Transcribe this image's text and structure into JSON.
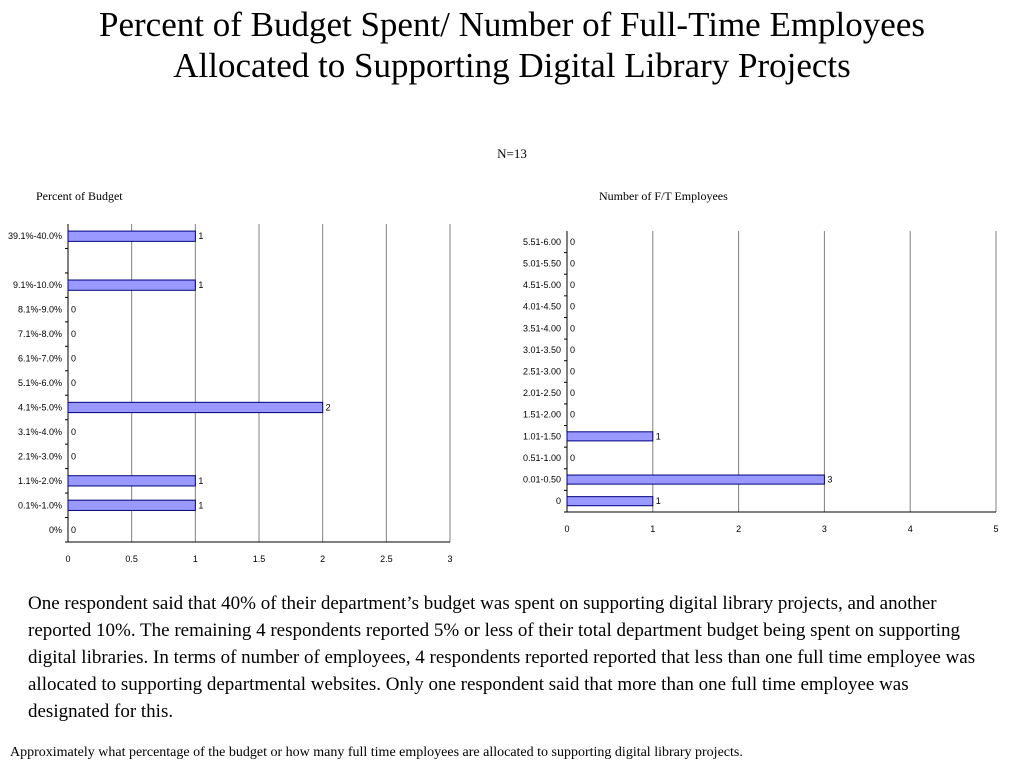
{
  "title": "Percent of Budget Spent/ Number of Full-Time Employees Allocated to Supporting Digital Library Projects",
  "subtitle": "N=13",
  "summary": "One respondent said that 40% of their department’s budget was spent on supporting digital library projects, and another reported 10%.  The remaining 4 respondents reported 5% or less of their total department budget being spent on supporting digital libraries. In terms of number of employees, 4 respondents reported reported that less than one full time employee was allocated to supporting departmental websites. Only one respondent said that more than one full time employee was designated for this.",
  "footnote": "Approximately what percentage of the budget or how many full time employees are allocated to supporting digital library projects.",
  "colors": {
    "bar_fill": "#9999ff",
    "bar_stroke": "#000080",
    "grid": "#808080"
  },
  "chart_data": [
    {
      "type": "bar",
      "orientation": "horizontal",
      "title": "Percent of Budget",
      "categories": [
        "0%",
        "0.1%-1.0%",
        "1.1%-2.0%",
        "2.1%-3.0%",
        "3.1%-4.0%",
        "4.1%-5.0%",
        "5.1%-6.0%",
        "6.1%-7.0%",
        "7.1%-8.0%",
        "8.1%-9.0%",
        "9.1%-10.0%",
        "",
        "39.1%-40.0%"
      ],
      "values": [
        0,
        1,
        1,
        0,
        0,
        2,
        0,
        0,
        0,
        0,
        1,
        null,
        1
      ],
      "data_labels": [
        "0",
        "1",
        "1",
        "0",
        "0",
        "2",
        "0",
        "0",
        "0",
        "0",
        "1",
        "",
        "1"
      ],
      "xlim": [
        0,
        3
      ],
      "xticks": [
        "0",
        "0.5",
        "1",
        "1.5",
        "2",
        "2.5",
        "3"
      ],
      "grid": true
    },
    {
      "type": "bar",
      "orientation": "horizontal",
      "title": "Number of F/T Employees",
      "categories": [
        "0",
        "0.01-0.50",
        "0.51-1.00",
        "1.01-1.50",
        "1.51-2.00",
        "2.01-2.50",
        "2.51-3.00",
        "3.01-3.50",
        "3.51-4.00",
        "4.01-4.50",
        "4.51-5.00",
        "5.01-5.50",
        "5.51-6.00"
      ],
      "values": [
        1,
        3,
        0,
        1,
        0,
        0,
        0,
        0,
        0,
        0,
        0,
        0,
        0
      ],
      "data_labels": [
        "1",
        "3",
        "0",
        "1",
        "0",
        "0",
        "0",
        "0",
        "0",
        "0",
        "0",
        "0",
        "0"
      ],
      "xlim": [
        0,
        5
      ],
      "xticks": [
        "0",
        "1",
        "2",
        "3",
        "4",
        "5"
      ],
      "grid": true
    }
  ]
}
